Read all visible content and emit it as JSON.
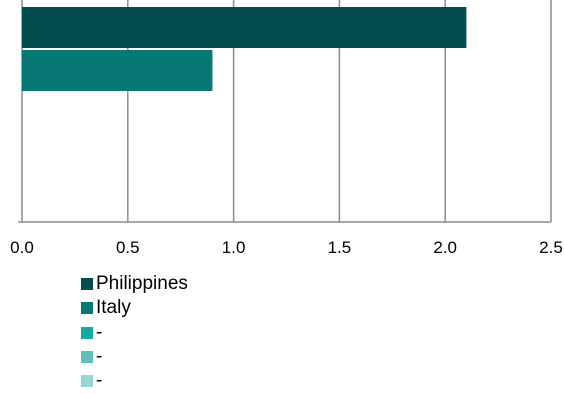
{
  "chart_data": {
    "type": "bar",
    "orientation": "horizontal",
    "title": "",
    "xlabel": "",
    "ylabel": "",
    "xlim": [
      0,
      2.5
    ],
    "x_ticks": [
      "0.0",
      "0.5",
      "1.0",
      "1.5",
      "2.0",
      "2.5"
    ],
    "grid": "vertical",
    "legend_position": "bottom",
    "series": [
      {
        "name": "Philippines",
        "value": 2.1,
        "color": "#034d4f"
      },
      {
        "name": "Italy",
        "value": 0.9,
        "color": "#087874"
      },
      {
        "name": "-",
        "value": 0,
        "color": "#12aba4"
      },
      {
        "name": "-",
        "value": 0,
        "color": "#5ebfbd"
      },
      {
        "name": "-",
        "value": 0,
        "color": "#96d6d6"
      }
    ]
  }
}
